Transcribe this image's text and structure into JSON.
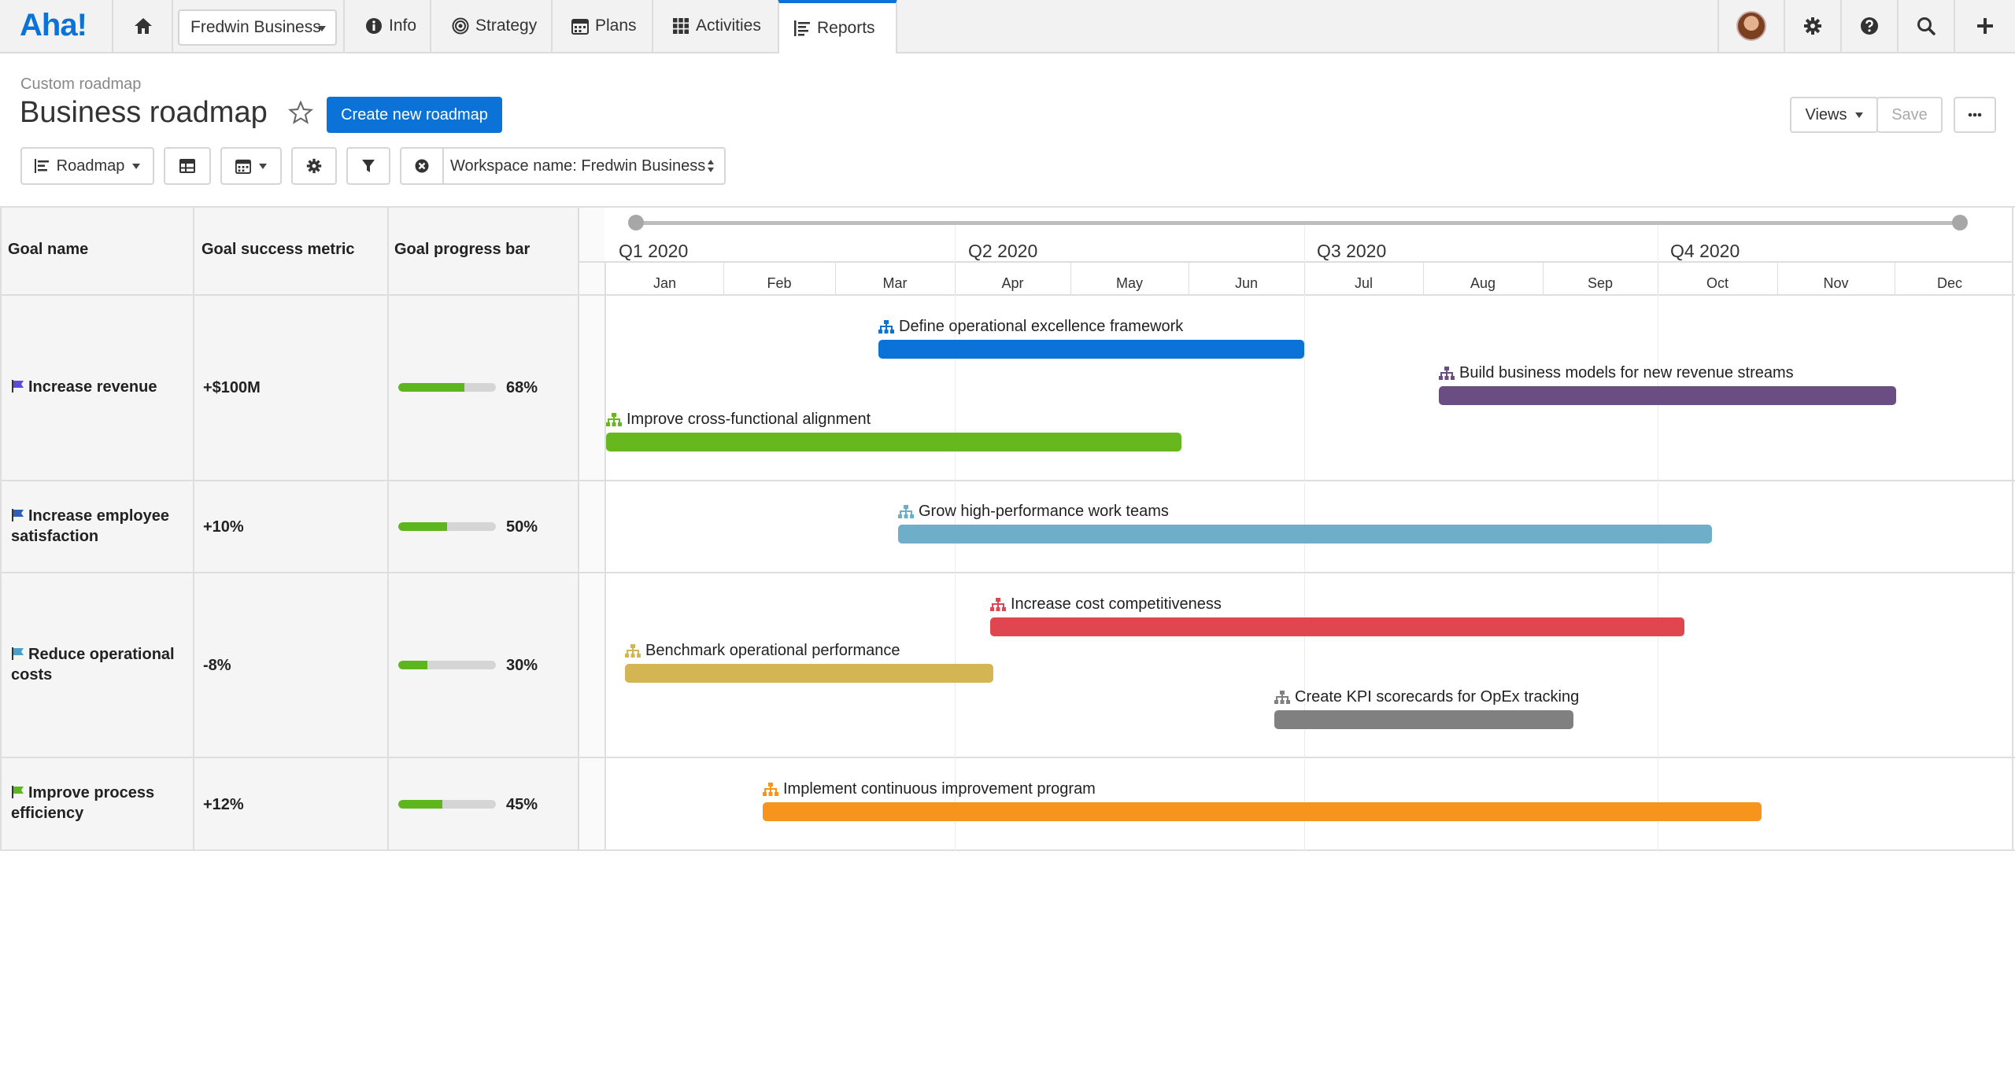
{
  "nav": {
    "logo": "Aha!",
    "workspace": "Fredwin Business",
    "tabs": [
      {
        "label": "Info"
      },
      {
        "label": "Strategy"
      },
      {
        "label": "Plans"
      },
      {
        "label": "Activities"
      },
      {
        "label": "Reports"
      }
    ]
  },
  "header": {
    "breadcrumb": "Custom roadmap",
    "title": "Business roadmap",
    "create_button": "Create new roadmap",
    "views_button": "Views",
    "save_button": "Save"
  },
  "toolbar": {
    "roadmap_button": "Roadmap",
    "filter_label": "Workspace name: Fredwin Business"
  },
  "columns": {
    "goal_name": "Goal name",
    "metric": "Goal success metric",
    "progress": "Goal progress bar"
  },
  "timeline": {
    "quarters": [
      "Q1 2020",
      "Q2 2020",
      "Q3 2020",
      "Q4 2020"
    ],
    "months": [
      "Jan",
      "Feb",
      "Mar",
      "Apr",
      "May",
      "Jun",
      "Jul",
      "Aug",
      "Sep",
      "Oct",
      "Nov",
      "Dec"
    ]
  },
  "goals": [
    {
      "name": "Increase revenue",
      "metric": "+$100M",
      "progress": 68,
      "progress_label": "68%",
      "flag_color": "#5b4bd6"
    },
    {
      "name": "Increase employee satisfaction",
      "metric": "+10%",
      "progress": 50,
      "progress_label": "50%",
      "flag_color": "#2f5fb5"
    },
    {
      "name": "Reduce operational costs",
      "metric": "-8%",
      "progress": 30,
      "progress_label": "30%",
      "flag_color": "#4aa0c8"
    },
    {
      "name": "Improve process efficiency",
      "metric": "+12%",
      "progress": 45,
      "progress_label": "45%",
      "flag_color": "#5eb61f"
    }
  ],
  "initiatives": [
    {
      "label": "Define operational excellence framework",
      "color": "#0b73d8"
    },
    {
      "label": "Build business models for new revenue streams",
      "color": "#6a4d82"
    },
    {
      "label": "Improve cross-functional alignment",
      "color": "#67b81e"
    },
    {
      "label": "Grow high-performance work teams",
      "color": "#6eaec8"
    },
    {
      "label": "Increase cost competitiveness",
      "color": "#e04650"
    },
    {
      "label": "Benchmark operational performance",
      "color": "#d4b553"
    },
    {
      "label": "Create KPI scorecards for OpEx tracking",
      "color": "#808080"
    },
    {
      "label": "Implement continuous improvement program",
      "color": "#f7941d"
    }
  ]
}
